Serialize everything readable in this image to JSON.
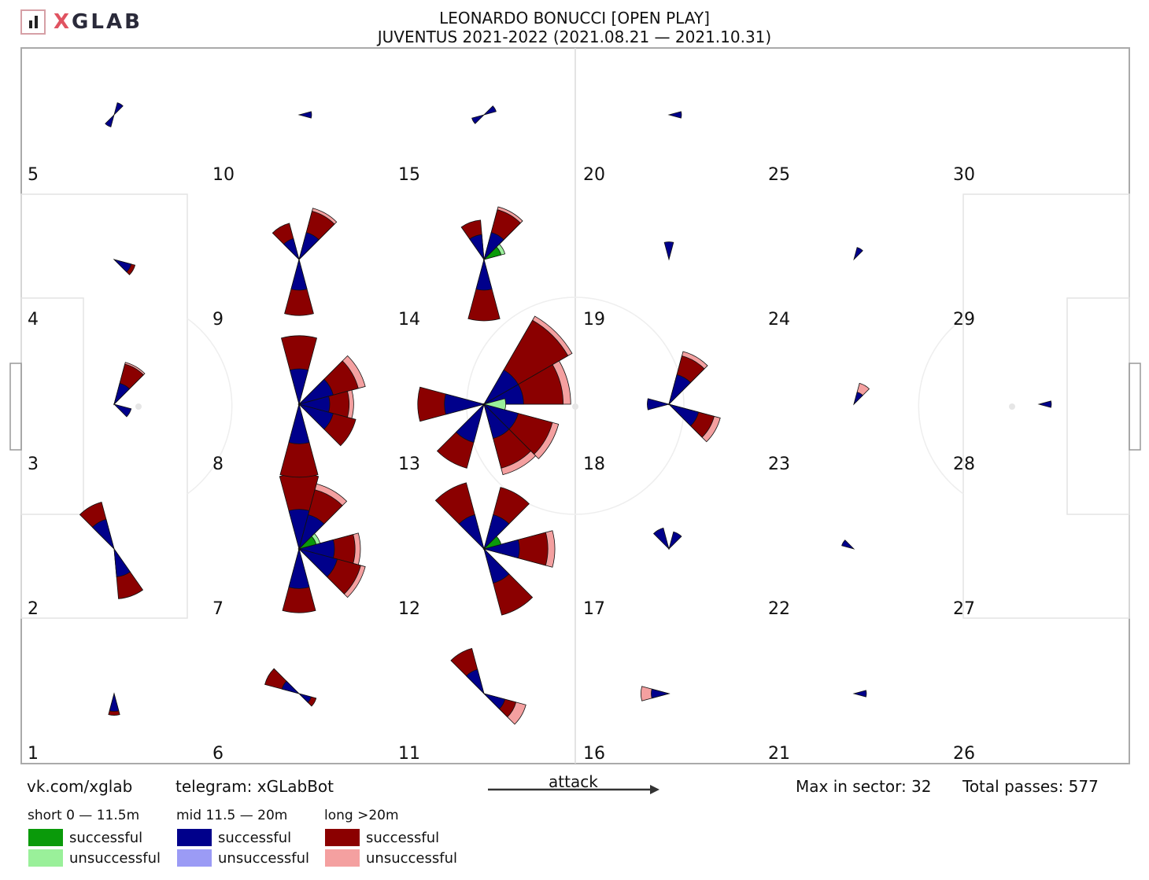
{
  "logo": {
    "x": "X",
    "rest": "GLAB"
  },
  "title": {
    "line1": "LEONARDO BONUCCI [OPEN PLAY]",
    "line2": "JUVENTUS 2021-2022 (2021.08.21 — 2021.10.31)"
  },
  "footer": {
    "vk": "vk.com/xglab",
    "telegram": "telegram: xGLabBot",
    "attack": "attack",
    "max": "Max in sector: 32",
    "total": "Total passes: 577"
  },
  "legend": {
    "short": {
      "title": "short 0 — 11.5m",
      "successful": "successful",
      "unsuccessful": "unsuccessful"
    },
    "mid": {
      "title": "mid 11.5 — 20m",
      "successful": "successful",
      "unsuccessful": "unsuccessful"
    },
    "long": {
      "title": "long >20m",
      "successful": "successful",
      "unsuccessful": "unsuccessful"
    }
  },
  "colors": {
    "short_success": "#0a9a0a",
    "short_fail": "#9af09a",
    "mid_success": "#00008b",
    "mid_fail": "#9b9bf5",
    "long_success": "#8b0000",
    "long_fail": "#f4a0a0"
  },
  "chart_data": {
    "type": "pass-rose-pitch",
    "max_in_sector": 32,
    "total_passes": 577,
    "zone_labels": [
      "1",
      "2",
      "3",
      "4",
      "5",
      "6",
      "7",
      "8",
      "9",
      "10",
      "11",
      "12",
      "13",
      "14",
      "15",
      "16",
      "17",
      "18",
      "19",
      "20",
      "21",
      "22",
      "23",
      "24",
      "25",
      "26",
      "27",
      "28",
      "29",
      "30"
    ],
    "zones": [
      {
        "zone": 1,
        "sectors": [
          {
            "dir": 270,
            "mid_s": 2,
            "long_s": 1
          }
        ]
      },
      {
        "zone": 2,
        "sectors": [
          {
            "dir": 120,
            "mid_s": 6,
            "long_s": 9
          },
          {
            "dir": 290,
            "mid_s": 5,
            "long_s": 11
          }
        ]
      },
      {
        "zone": 3,
        "sectors": [
          {
            "dir": 60,
            "mid_s": 3,
            "long_s": 8,
            "long_f": 1
          },
          {
            "dir": 330,
            "mid_s": 2
          }
        ]
      },
      {
        "zone": 4,
        "sectors": [
          {
            "dir": 330,
            "mid_s": 2,
            "long_s": 1
          }
        ]
      },
      {
        "zone": 5,
        "sectors": [
          {
            "dir": 60,
            "mid_s": 1
          },
          {
            "dir": 240,
            "mid_s": 1
          }
        ]
      },
      {
        "zone": 6,
        "sectors": [
          {
            "dir": 150,
            "mid_s": 2,
            "long_s": 6
          },
          {
            "dir": 330,
            "mid_s": 1,
            "long_s": 1
          }
        ]
      },
      {
        "zone": 7,
        "sectors": [
          {
            "dir": 90,
            "mid_s": 10,
            "long_s": 26
          },
          {
            "dir": 60,
            "mid_s": 8,
            "long_s": 16,
            "long_f": 5
          },
          {
            "dir": 0,
            "mid_s": 8,
            "long_s": 12,
            "long_f": 4
          },
          {
            "dir": 330,
            "mid_s": 10,
            "long_s": 16,
            "long_f": 4
          },
          {
            "dir": 270,
            "mid_s": 10,
            "long_s": 16
          },
          {
            "dir": 30,
            "short_s": 2,
            "short_f": 1
          }
        ]
      },
      {
        "zone": 8,
        "sectors": [
          {
            "dir": 90,
            "mid_s": 8,
            "long_s": 22
          },
          {
            "dir": 30,
            "mid_s": 8,
            "long_s": 16,
            "long_f": 6
          },
          {
            "dir": 330,
            "mid_s": 8,
            "long_s": 14
          },
          {
            "dir": 270,
            "mid_s": 10,
            "long_s": 24
          },
          {
            "dir": 0,
            "mid_s": 6,
            "long_s": 10,
            "long_f": 3
          }
        ]
      },
      {
        "zone": 9,
        "sectors": [
          {
            "dir": 60,
            "mid_s": 5,
            "long_s": 11,
            "long_f": 2
          },
          {
            "dir": 270,
            "mid_s": 6,
            "long_s": 14
          },
          {
            "dir": 120,
            "mid_s": 3,
            "long_s": 6
          }
        ]
      },
      {
        "zone": 10,
        "sectors": [
          {
            "dir": 0,
            "mid_s": 1
          }
        ]
      },
      {
        "zone": 11,
        "sectors": [
          {
            "dir": 120,
            "mid_s": 4,
            "long_s": 10
          },
          {
            "dir": 330,
            "mid_s": 3,
            "long_s": 4,
            "long_f": 5
          }
        ]
      },
      {
        "zone": 12,
        "sectors": [
          {
            "dir": 120,
            "mid_s": 8,
            "long_s": 22
          },
          {
            "dir": 60,
            "mid_s": 8,
            "long_s": 18
          },
          {
            "dir": 0,
            "mid_s": 8,
            "long_s": 18,
            "long_f": 6
          },
          {
            "dir": 300,
            "mid_s": 8,
            "long_s": 22
          },
          {
            "dir": 30,
            "short_s": 2
          }
        ]
      },
      {
        "zone": 13,
        "sectors": [
          {
            "dir": 45,
            "mid_s": 10,
            "long_s": 50,
            "long_f": 6
          },
          {
            "dir": 15,
            "mid_s": 10,
            "long_s": 30,
            "long_f": 8
          },
          {
            "dir": 330,
            "mid_s": 8,
            "long_s": 24,
            "long_f": 6
          },
          {
            "dir": 300,
            "mid_s": 8,
            "long_s": 20,
            "long_f": 6
          },
          {
            "dir": 180,
            "mid_s": 10,
            "long_s": 18
          },
          {
            "dir": 240,
            "mid_s": 10,
            "long_s": 18
          },
          {
            "dir": 0,
            "short_f": 3
          }
        ]
      },
      {
        "zone": 14,
        "sectors": [
          {
            "dir": 60,
            "mid_s": 5,
            "long_s": 12,
            "long_f": 2
          },
          {
            "dir": 270,
            "mid_s": 6,
            "long_s": 18
          },
          {
            "dir": 110,
            "mid_s": 4,
            "long_s": 6
          },
          {
            "dir": 30,
            "short_s": 2,
            "short_f": 1
          }
        ]
      },
      {
        "zone": 15,
        "sectors": [
          {
            "dir": 30,
            "mid_s": 1
          },
          {
            "dir": 210,
            "mid_s": 1
          }
        ]
      },
      {
        "zone": 16,
        "sectors": [
          {
            "dir": 180,
            "mid_s": 2,
            "long_f": 3
          }
        ]
      },
      {
        "zone": 17,
        "sectors": [
          {
            "dir": 120,
            "mid_s": 3
          },
          {
            "dir": 60,
            "mid_s": 2
          }
        ]
      },
      {
        "zone": 18,
        "sectors": [
          {
            "dir": 60,
            "mid_s": 6,
            "long_s": 10,
            "long_f": 3
          },
          {
            "dir": 330,
            "mid_s": 6,
            "long_s": 8,
            "long_f": 4
          },
          {
            "dir": 180,
            "mid_s": 3
          }
        ]
      },
      {
        "zone": 19,
        "sectors": [
          {
            "dir": 90,
            "mid_s": 2
          }
        ]
      },
      {
        "zone": 20,
        "sectors": [
          {
            "dir": 0,
            "mid_s": 1
          }
        ]
      },
      {
        "zone": 21,
        "sectors": [
          {
            "dir": 0,
            "mid_s": 1
          }
        ]
      },
      {
        "zone": 22,
        "sectors": [
          {
            "dir": 150,
            "mid_s": 1
          }
        ]
      },
      {
        "zone": 23,
        "sectors": [
          {
            "dir": 60,
            "mid_s": 1,
            "long_f": 2
          }
        ]
      },
      {
        "zone": 24,
        "sectors": [
          {
            "dir": 60,
            "mid_s": 1
          }
        ]
      },
      {
        "zone": 25,
        "sectors": []
      },
      {
        "zone": 26,
        "sectors": []
      },
      {
        "zone": 27,
        "sectors": []
      },
      {
        "zone": 28,
        "sectors": [
          {
            "dir": 0,
            "mid_s": 1
          }
        ]
      },
      {
        "zone": 29,
        "sectors": []
      },
      {
        "zone": 30,
        "sectors": []
      }
    ]
  }
}
